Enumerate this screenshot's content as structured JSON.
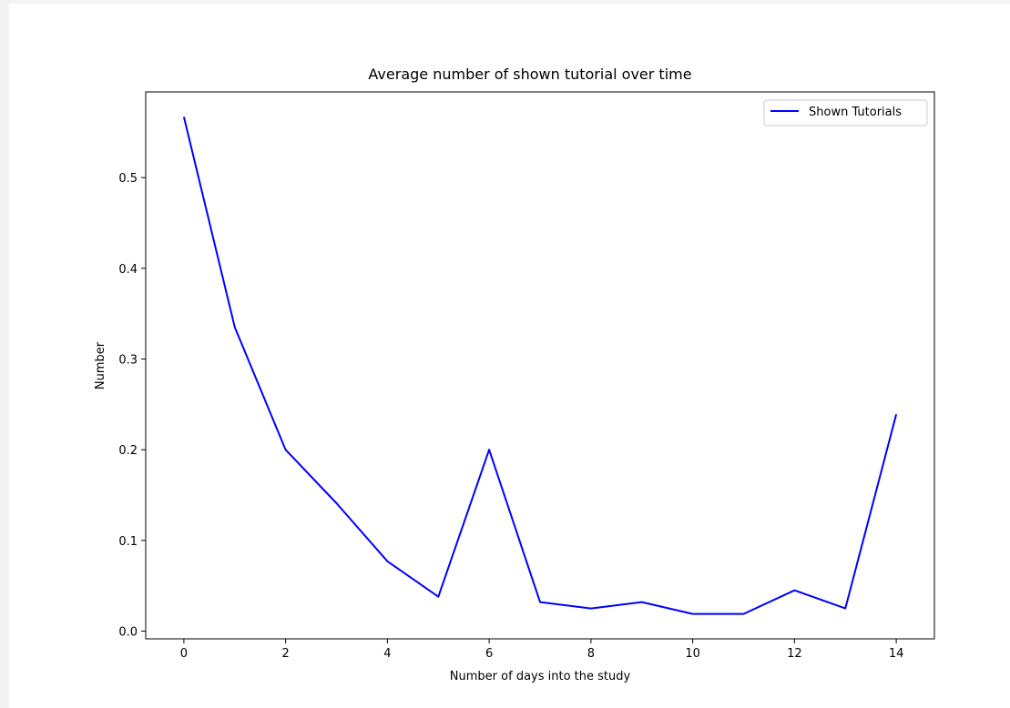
{
  "chart_data": {
    "type": "line",
    "title": "Average number of shown tutorial over time",
    "xlabel": "Number of days into the study",
    "ylabel": "Number",
    "xlim": [
      -0.75,
      14.75
    ],
    "ylim": [
      -0.0085,
      0.5945
    ],
    "xticks": [
      0,
      2,
      4,
      6,
      8,
      10,
      12,
      14
    ],
    "yticks": [
      0.0,
      0.1,
      0.2,
      0.3,
      0.4,
      0.5
    ],
    "ytick_labels": [
      "0.0",
      "0.1",
      "0.2",
      "0.3",
      "0.4",
      "0.5"
    ],
    "grid": false,
    "legend_position": "top-right",
    "series": [
      {
        "name": "Shown Tutorials",
        "color": "#0000ff",
        "x": [
          0,
          1,
          2,
          3,
          4,
          5,
          6,
          7,
          8,
          9,
          10,
          11,
          12,
          13,
          14
        ],
        "values": [
          0.567,
          0.335,
          0.2,
          0.141,
          0.077,
          0.038,
          0.2,
          0.032,
          0.025,
          0.032,
          0.019,
          0.019,
          0.045,
          0.025,
          0.239
        ]
      }
    ]
  }
}
